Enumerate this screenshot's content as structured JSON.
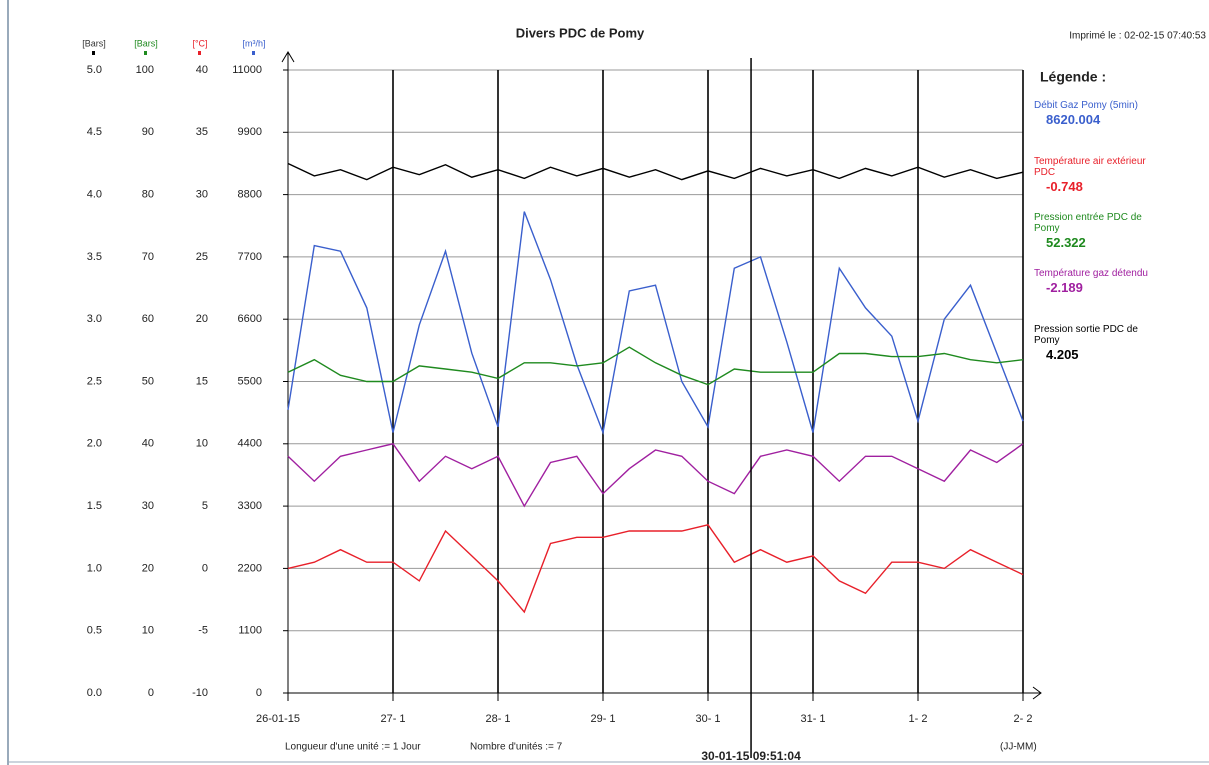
{
  "chart_data": {
    "type": "line",
    "title": "Divers PDC de Pomy",
    "printed": "Imprimé le : 02-02-15 07:40:53",
    "legend_title": "Légende :",
    "unit_length": "Longueur d'une unité := 1 Jour",
    "unit_count": "Nombre d'unités := 7",
    "x_format": "(JJ-MM)",
    "cursor_label": "30-01-15 09:51:04",
    "cursor_x": 4.41,
    "xlim": [
      0,
      7
    ],
    "xticks": [
      {
        "value": 0,
        "label": "26-01-15"
      },
      {
        "value": 1,
        "label": "27- 1"
      },
      {
        "value": 2,
        "label": "28- 1"
      },
      {
        "value": 3,
        "label": "29- 1"
      },
      {
        "value": 4,
        "label": "30- 1"
      },
      {
        "value": 5,
        "label": "31- 1"
      },
      {
        "value": 6,
        "label": "1- 2"
      },
      {
        "value": 7,
        "label": "2- 2"
      }
    ],
    "grid": true,
    "axes": [
      {
        "label": "[Bars]",
        "color": "#000000",
        "lim": [
          0,
          5
        ],
        "ticks": [
          {
            "value": 0,
            "label": "0.0"
          },
          0.5,
          {
            "value": 1,
            "label": "1.0"
          },
          1.5,
          {
            "value": 2,
            "label": "2.0"
          },
          2.5,
          {
            "value": 3,
            "label": "3.0"
          },
          3.5,
          {
            "value": 4,
            "label": "4.0"
          },
          4.5,
          {
            "value": 5,
            "label": "5.0"
          }
        ]
      },
      {
        "label": "[Bars]",
        "color": "#1f8a1f",
        "lim": [
          0,
          100
        ],
        "ticks": [
          0,
          10,
          20,
          30,
          40,
          50,
          60,
          70,
          80,
          90,
          100
        ]
      },
      {
        "label": "[°C]",
        "color": "#e8202a",
        "lim": [
          -10,
          40
        ],
        "ticks": [
          -10,
          -5,
          0,
          5,
          10,
          15,
          20,
          25,
          30,
          35,
          40
        ]
      },
      {
        "label": "[m³/h]",
        "color": "#3a5fcd",
        "lim": [
          0,
          11000
        ],
        "ticks": [
          0,
          1100,
          2200,
          3300,
          4400,
          5500,
          6600,
          7700,
          8800,
          9900,
          11000
        ]
      }
    ],
    "x": [
      0,
      0.25,
      0.5,
      0.75,
      1,
      1.25,
      1.5,
      1.75,
      2,
      2.25,
      2.5,
      2.75,
      3,
      3.25,
      3.5,
      3.75,
      4,
      4.25,
      4.5,
      4.75,
      5,
      5.25,
      5.5,
      5.75,
      6,
      6.25,
      6.5,
      6.75,
      7
    ],
    "series": [
      {
        "name": "Débit Gaz Pomy (5min)",
        "color": "#3a5fcd",
        "axis": 3,
        "legend_value": 8620.004,
        "values": [
          5000,
          7900,
          7800,
          6800,
          4600,
          6500,
          7800,
          6000,
          4700,
          8500,
          7300,
          5800,
          4600,
          7100,
          7200,
          5500,
          4700,
          7500,
          7700,
          6200,
          4600,
          7500,
          6800,
          6300,
          4800,
          6600,
          7200,
          6000,
          4800
        ]
      },
      {
        "name": "Température air extérieur PDC",
        "color": "#e8202a",
        "axis": 2,
        "legend_value": -0.748,
        "values": [
          0,
          0.5,
          1.5,
          0.5,
          0.5,
          -1,
          3,
          1,
          -1,
          -3.5,
          2,
          2.5,
          2.5,
          3,
          3,
          3,
          3.5,
          0.5,
          1.5,
          0.5,
          1,
          -1,
          -2,
          0.5,
          0.5,
          0,
          1.5,
          0.5,
          -0.5
        ]
      },
      {
        "name": "Pression entrée PDC de Pomy",
        "color": "#1f8a1f",
        "axis": 1,
        "legend_value": 52.322,
        "values": [
          51.5,
          53.5,
          51,
          50,
          50,
          52.5,
          52,
          51.5,
          50.5,
          53,
          53,
          52.5,
          53,
          55.5,
          53,
          51,
          49.5,
          52,
          51.5,
          51.5,
          51.5,
          54.5,
          54.5,
          54,
          54,
          54.5,
          53.5,
          53,
          53.5
        ]
      },
      {
        "name": "Température gaz détendu",
        "color": "#a020a0",
        "axis": 2,
        "legend_value": -2.189,
        "values": [
          9,
          7,
          9,
          9.5,
          10,
          7,
          9,
          8,
          9,
          5,
          8.5,
          9,
          6,
          8,
          9.5,
          9,
          7,
          6,
          9,
          9.5,
          9,
          7,
          9,
          9,
          8,
          7,
          9.5,
          8.5,
          10
        ]
      },
      {
        "name": "Pression sortie PDC de Pomy",
        "color": "#000000",
        "axis": 0,
        "legend_value": 4.205,
        "values": [
          4.25,
          4.15,
          4.2,
          4.12,
          4.22,
          4.16,
          4.24,
          4.14,
          4.2,
          4.13,
          4.22,
          4.15,
          4.21,
          4.14,
          4.2,
          4.12,
          4.19,
          4.13,
          4.21,
          4.15,
          4.2,
          4.13,
          4.21,
          4.15,
          4.22,
          4.14,
          4.2,
          4.13,
          4.18
        ]
      }
    ]
  }
}
